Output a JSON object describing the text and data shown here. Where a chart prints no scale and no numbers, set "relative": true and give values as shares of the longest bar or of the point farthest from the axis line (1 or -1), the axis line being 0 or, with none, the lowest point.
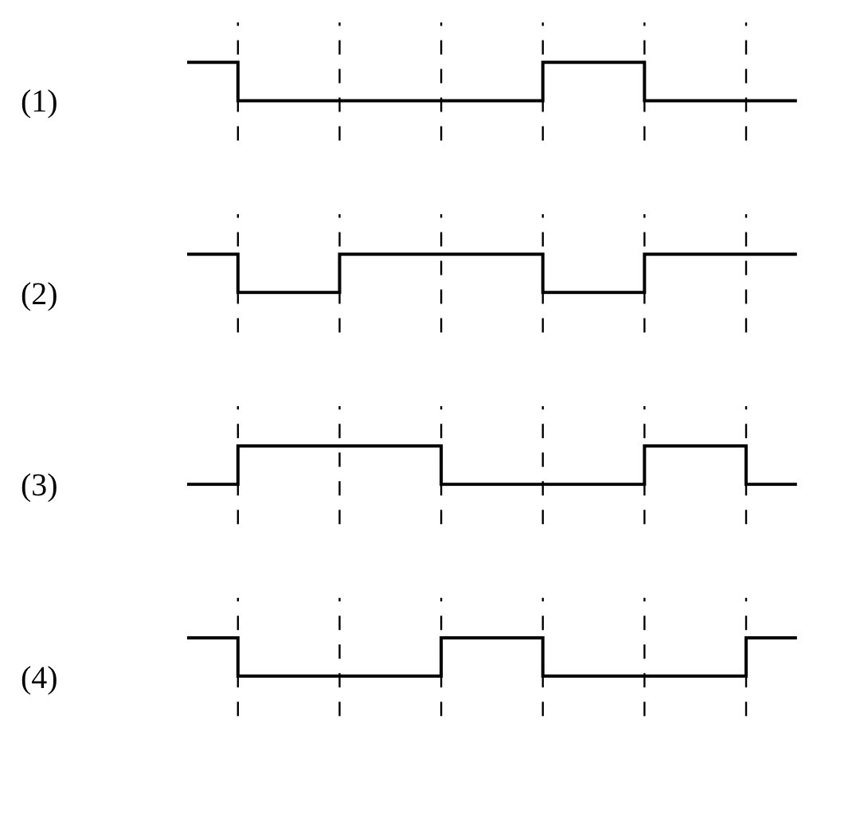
{
  "chart_data": [
    {
      "type": "step",
      "ylabel": "(1)",
      "relative": true,
      "categories": [
        null,
        null,
        null,
        null,
        null,
        null,
        null
      ],
      "grid": "x",
      "marker": "none",
      "line_style": "solid",
      "series": [
        {
          "color": "#000000",
          "values": [
            1,
            0,
            0,
            0,
            1,
            0,
            0
          ]
        }
      ]
    },
    {
      "type": "step",
      "ylabel": "(2)",
      "relative": true,
      "categories": [
        null,
        null,
        null,
        null,
        null,
        null,
        null
      ],
      "grid": "x",
      "marker": "none",
      "line_style": "solid",
      "series": [
        {
          "color": "#000000",
          "values": [
            1,
            0,
            1,
            1,
            0,
            1,
            1
          ]
        }
      ]
    },
    {
      "type": "step",
      "ylabel": "(3)",
      "relative": true,
      "categories": [
        null,
        null,
        null,
        null,
        null,
        null,
        null
      ],
      "grid": "x",
      "marker": "none",
      "line_style": "solid",
      "series": [
        {
          "color": "#000000",
          "values": [
            0,
            1,
            1,
            0,
            0,
            1,
            0
          ]
        }
      ]
    },
    {
      "type": "step",
      "ylabel": "(4)",
      "relative": true,
      "categories": [
        null,
        null,
        null,
        null,
        null,
        null,
        null
      ],
      "grid": "x",
      "marker": "none",
      "line_style": "solid",
      "series": [
        {
          "color": "#000000",
          "values": [
            1,
            0,
            0,
            1,
            0,
            0,
            1
          ]
        }
      ]
    }
  ]
}
